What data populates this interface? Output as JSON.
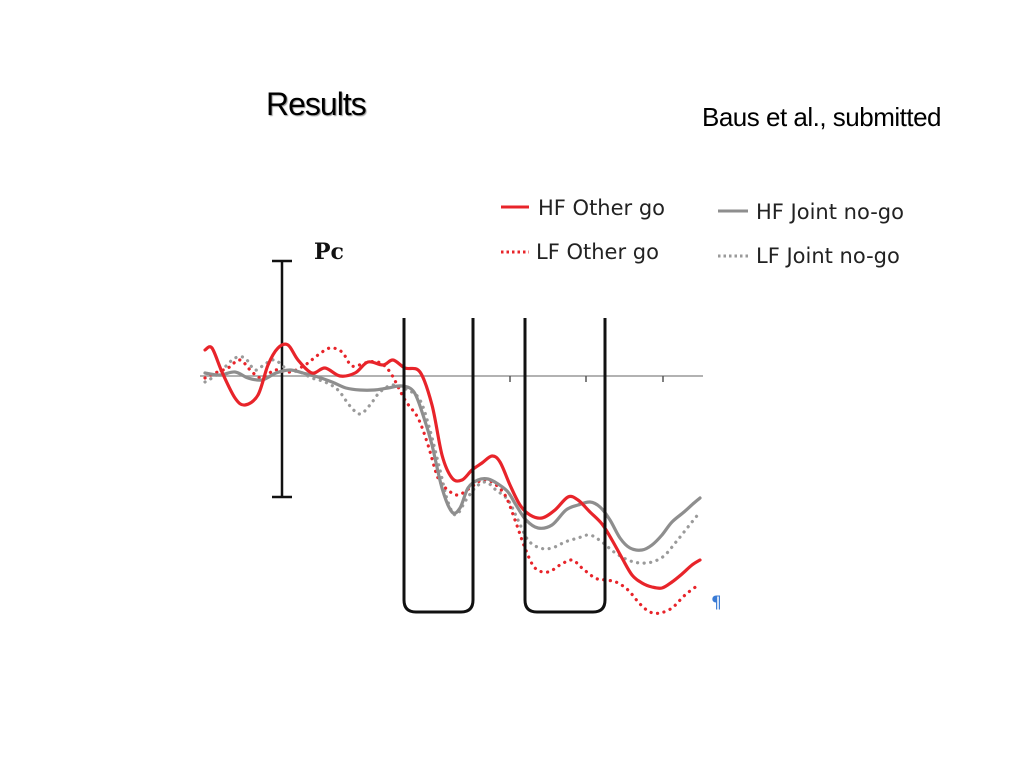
{
  "slide": {
    "title": "Results",
    "citation": "Baus et al., submitted"
  },
  "figure": {
    "scale_label": "Pc",
    "mark": "¶"
  },
  "chart_data": {
    "type": "line",
    "title": "",
    "xlabel": "",
    "ylabel": "",
    "y_axis_label": "Pc",
    "x_ticks_labeled": false,
    "legend_position": "top-right",
    "highlighted_windows": 2,
    "series": [
      {
        "name": "HF Other go",
        "color": "#e8242a",
        "style": "solid",
        "points": [
          [
            205,
            350
          ],
          [
            212,
            348
          ],
          [
            222,
            372
          ],
          [
            235,
            398
          ],
          [
            245,
            405
          ],
          [
            258,
            395
          ],
          [
            268,
            365
          ],
          [
            278,
            348
          ],
          [
            288,
            345
          ],
          [
            298,
            360
          ],
          [
            312,
            373
          ],
          [
            325,
            368
          ],
          [
            340,
            376
          ],
          [
            355,
            373
          ],
          [
            368,
            362
          ],
          [
            383,
            365
          ],
          [
            393,
            360
          ],
          [
            405,
            368
          ],
          [
            420,
            372
          ],
          [
            432,
            405
          ],
          [
            442,
            455
          ],
          [
            452,
            478
          ],
          [
            462,
            480
          ],
          [
            472,
            470
          ],
          [
            482,
            463
          ],
          [
            492,
            456
          ],
          [
            500,
            462
          ],
          [
            510,
            485
          ],
          [
            520,
            505
          ],
          [
            530,
            515
          ],
          [
            542,
            518
          ],
          [
            555,
            510
          ],
          [
            568,
            497
          ],
          [
            578,
            500
          ],
          [
            590,
            512
          ],
          [
            602,
            524
          ],
          [
            612,
            540
          ],
          [
            622,
            558
          ],
          [
            632,
            575
          ],
          [
            642,
            583
          ],
          [
            652,
            587
          ],
          [
            662,
            588
          ],
          [
            672,
            582
          ],
          [
            682,
            574
          ],
          [
            692,
            565
          ],
          [
            700,
            560
          ]
        ]
      },
      {
        "name": "LF Other go",
        "color": "#e8242a",
        "style": "dotted",
        "points": [
          [
            205,
            378
          ],
          [
            215,
            373
          ],
          [
            228,
            368
          ],
          [
            240,
            360
          ],
          [
            252,
            372
          ],
          [
            262,
            378
          ],
          [
            275,
            370
          ],
          [
            290,
            372
          ],
          [
            305,
            365
          ],
          [
            318,
            355
          ],
          [
            330,
            348
          ],
          [
            342,
            352
          ],
          [
            352,
            366
          ],
          [
            365,
            363
          ],
          [
            378,
            362
          ],
          [
            390,
            372
          ],
          [
            405,
            400
          ],
          [
            418,
            418
          ],
          [
            428,
            445
          ],
          [
            438,
            478
          ],
          [
            448,
            490
          ],
          [
            458,
            495
          ],
          [
            470,
            488
          ],
          [
            482,
            480
          ],
          [
            492,
            482
          ],
          [
            505,
            495
          ],
          [
            515,
            520
          ],
          [
            525,
            548
          ],
          [
            535,
            568
          ],
          [
            548,
            572
          ],
          [
            560,
            565
          ],
          [
            572,
            560
          ],
          [
            582,
            568
          ],
          [
            595,
            578
          ],
          [
            605,
            580
          ],
          [
            616,
            582
          ],
          [
            628,
            590
          ],
          [
            640,
            604
          ],
          [
            650,
            612
          ],
          [
            660,
            613
          ],
          [
            672,
            608
          ],
          [
            684,
            596
          ],
          [
            694,
            588
          ],
          [
            700,
            585
          ]
        ]
      },
      {
        "name": "HF Joint no-go",
        "color": "#8e8e8e",
        "style": "solid",
        "points": [
          [
            205,
            373
          ],
          [
            220,
            375
          ],
          [
            235,
            372
          ],
          [
            248,
            378
          ],
          [
            262,
            380
          ],
          [
            276,
            373
          ],
          [
            290,
            370
          ],
          [
            303,
            373
          ],
          [
            318,
            377
          ],
          [
            332,
            382
          ],
          [
            346,
            388
          ],
          [
            360,
            390
          ],
          [
            374,
            390
          ],
          [
            388,
            388
          ],
          [
            402,
            386
          ],
          [
            414,
            392
          ],
          [
            424,
            418
          ],
          [
            432,
            445
          ],
          [
            442,
            488
          ],
          [
            452,
            512
          ],
          [
            460,
            508
          ],
          [
            468,
            488
          ],
          [
            478,
            480
          ],
          [
            488,
            479
          ],
          [
            498,
            484
          ],
          [
            508,
            492
          ],
          [
            516,
            505
          ],
          [
            526,
            520
          ],
          [
            538,
            528
          ],
          [
            552,
            525
          ],
          [
            566,
            510
          ],
          [
            578,
            505
          ],
          [
            590,
            502
          ],
          [
            600,
            507
          ],
          [
            610,
            520
          ],
          [
            620,
            538
          ],
          [
            630,
            548
          ],
          [
            642,
            550
          ],
          [
            652,
            545
          ],
          [
            662,
            535
          ],
          [
            672,
            522
          ],
          [
            684,
            512
          ],
          [
            694,
            503
          ],
          [
            700,
            498
          ]
        ]
      },
      {
        "name": "LF Joint no-go",
        "color": "#9a9a9a",
        "style": "dotted",
        "points": [
          [
            205,
            382
          ],
          [
            215,
            376
          ],
          [
            225,
            367
          ],
          [
            235,
            358
          ],
          [
            245,
            358
          ],
          [
            255,
            370
          ],
          [
            265,
            364
          ],
          [
            275,
            360
          ],
          [
            288,
            370
          ],
          [
            300,
            372
          ],
          [
            312,
            378
          ],
          [
            325,
            382
          ],
          [
            338,
            390
          ],
          [
            350,
            406
          ],
          [
            360,
            414
          ],
          [
            370,
            405
          ],
          [
            380,
            392
          ],
          [
            393,
            385
          ],
          [
            408,
            390
          ],
          [
            420,
            400
          ],
          [
            430,
            430
          ],
          [
            440,
            470
          ],
          [
            448,
            502
          ],
          [
            456,
            515
          ],
          [
            466,
            500
          ],
          [
            476,
            487
          ],
          [
            486,
            482
          ],
          [
            496,
            490
          ],
          [
            508,
            500
          ],
          [
            518,
            520
          ],
          [
            528,
            540
          ],
          [
            540,
            548
          ],
          [
            552,
            548
          ],
          [
            565,
            542
          ],
          [
            578,
            538
          ],
          [
            590,
            535
          ],
          [
            602,
            542
          ],
          [
            614,
            552
          ],
          [
            628,
            560
          ],
          [
            640,
            563
          ],
          [
            652,
            562
          ],
          [
            664,
            556
          ],
          [
            676,
            542
          ],
          [
            688,
            527
          ],
          [
            700,
            512
          ]
        ]
      }
    ]
  }
}
